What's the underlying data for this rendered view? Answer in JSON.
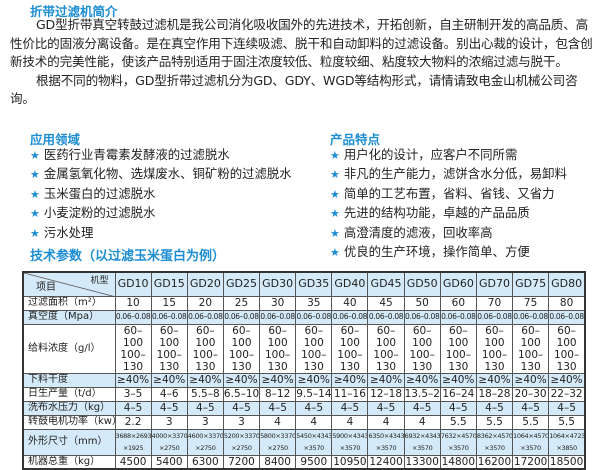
{
  "intro": {
    "title": "折带过滤机简介",
    "paragraphs": [
      "GD型折带真空转鼓过滤机是我公司消化吸收国外的先进技术，开拓创新，自主研制开发的高品质、高性价比的固液分离设备。是在真空作用下连续吸滤、脱干和自动卸料的过滤设备。别出心裁的设计，包含创新技术的完美性能，使该产品特别适用于固注浓度较低、粒度较细、粘度较大物料的浓缩过滤与脱干。",
      "根据不同的物料，GD型折带过滤机分为GD、GDY、WGD等结构形式，请情请致电金山机械公司咨询。"
    ]
  },
  "applications": {
    "title": "应用领域",
    "items": [
      "医药行业青霉素发酵液的过滤脱水",
      "金属氢氧化物、选煤废水、铜矿粉的过滤脱水",
      "玉米蛋白的过滤脱水",
      "小麦淀粉的过滤脱水",
      "污水处理"
    ]
  },
  "features": {
    "title": "产品特点",
    "items": [
      "用户化的设计，应客户不同所需",
      "非凡的生产能力，滤饼含水分低，易卸料",
      "简单的工艺布置，省料、省钱、又省力",
      "先进的结构功能，卓越的产品品质",
      "高澄清度的滤液，回收率高",
      "优良的生产环境，操作简单、方便"
    ]
  },
  "specs": {
    "title": "技术参数（以过滤玉米蛋白为例）",
    "corner_top": "机型",
    "corner_bottom": "项目",
    "models": [
      "GD10",
      "GD15",
      "GD20",
      "GD25",
      "GD30",
      "GD35",
      "GD40",
      "GD45",
      "GD50",
      "GD60",
      "GD70",
      "GD75",
      "GD80"
    ],
    "rows": [
      {
        "label": "过滤面积（m²）",
        "values": [
          "10",
          "15",
          "20",
          "25",
          "30",
          "35",
          "40",
          "45",
          "50",
          "60",
          "70",
          "75",
          "80"
        ]
      },
      {
        "label": "真空度（Mpa）",
        "values": [
          "0.06–0.08",
          "0.06–0.08",
          "0.06–0.08",
          "0.06–0.08",
          "0.06–0.08",
          "0.06–0.08",
          "0.06–0.08",
          "0.06–0.08",
          "0.06–0.08",
          "0.06–0.08",
          "0.06–0.08",
          "0.06–0.08",
          "0.06–0.08"
        ]
      },
      {
        "label": "给料浓度（g/l）",
        "values": [
          "60–100 100–130",
          "60–100 100–130",
          "60–100 100–130",
          "60–100 100–130",
          "60–100 100–130",
          "60–100 100–130",
          "60–100 100–130",
          "60–100 100–130",
          "60–100 100–130",
          "60–100 100–130",
          "60–100 100–130",
          "60–100 100–130",
          "60–100 100–130"
        ]
      },
      {
        "label": "下料干度",
        "values": [
          "≥40%",
          "≥40%",
          "≥40%",
          "≥40%",
          "≥40%",
          "≥40%",
          "≥40%",
          "≥40%",
          "≥40%",
          "≥40%",
          "≥40%",
          "≥40%",
          "≥40%"
        ]
      },
      {
        "label": "日生产量（t/d）",
        "values": [
          "3–5",
          "4–6",
          "5.5–8",
          "6.5–10",
          "8–12",
          "9.5–14",
          "11–16",
          "12–18",
          "13.5–20",
          "16–24",
          "18–28",
          "20–30",
          "22–32"
        ]
      },
      {
        "label": "洗布水压力（kg）",
        "values": [
          "4–5",
          "4–5",
          "4–5",
          "4–5",
          "4–5",
          "4–5",
          "4–5",
          "4–5",
          "4–5",
          "4–5",
          "4–5",
          "4–5",
          "4–5"
        ]
      },
      {
        "label": "转鼓电机功率（kw）",
        "values": [
          "2.2",
          "3",
          "3",
          "3",
          "4",
          "4",
          "4",
          "4",
          "4",
          "5.5",
          "5.5",
          "5.5",
          "5.5"
        ]
      },
      {
        "label": "外形尺寸（mm）",
        "values": [
          "3688×2693 ×1925",
          "4000×3370 ×2750",
          "4600×3370 ×2750",
          "5200×3370 ×2750",
          "5800×3370 ×2750",
          "5450×4343 ×3570",
          "5900×4343 ×3570",
          "6350×4343 ×3570",
          "6932×4343 ×3570",
          "7632×4570 ×3570",
          "8362×4570 ×3570",
          "1064×4570 ×3570",
          "1064×4723 ×3850"
        ]
      },
      {
        "label": "机器总重（kg）",
        "values": [
          "4500",
          "5400",
          "6300",
          "7200",
          "8400",
          "9500",
          "10950",
          "12400",
          "13300",
          "14800",
          "16200",
          "17200",
          "18500"
        ]
      }
    ]
  },
  "colors": {
    "accent": "#1e8ed3",
    "row_shade": "#d4eaf8"
  }
}
